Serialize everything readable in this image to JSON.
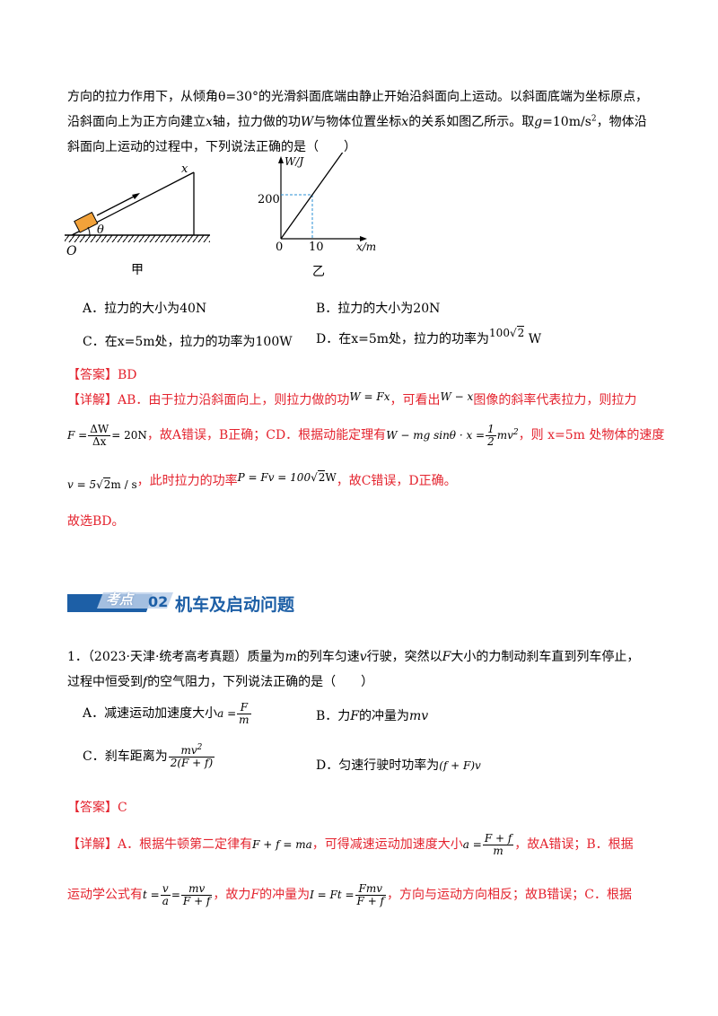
{
  "q_intro": {
    "line1": "方向的拉力作用下，从倾角θ=30°的光滑斜面底端由静止开始沿斜面向上运动。以斜面底端为坐标原点，",
    "line2a": "沿斜面向上为正方向建立",
    "line2b": "x",
    "line2c": "轴，拉力做的功",
    "line2d": "W",
    "line2e": "与物体位置坐标",
    "line2f": "x",
    "line2g": "的关系如图乙所示。取",
    "line2h": "g",
    "line2i": "=10m/s",
    "line2j": "2",
    "line2k": "，物体沿",
    "line3": "斜面向上运动的过程中，下列说法正确的是（　　）"
  },
  "figures": {
    "fig1": {
      "caption": "甲",
      "label_x": "x",
      "label_theta": "θ",
      "label_O": "O"
    },
    "fig2": {
      "caption": "乙",
      "y_axis_label": "W/J",
      "x_axis_label": "x/m",
      "origin_label": "0",
      "y_tick": "200",
      "x_tick": "10"
    }
  },
  "chart_data": {
    "type": "line",
    "x": [
      0,
      10
    ],
    "y": [
      0,
      200
    ],
    "xlabel": "x/m",
    "ylabel": "W/J"
  },
  "q1_choices": {
    "A": "A．拉力的大小为40N",
    "B": "B．拉力的大小为20N",
    "C": "C．在x=5m处，拉力的功率为100W",
    "D_pre": "D．在x=5m处，拉力的功率为",
    "D_val": "100",
    "D_rad": "2",
    "D_unit": " W"
  },
  "q1_answer": {
    "label": "【答案】BD"
  },
  "q1_detail": {
    "l1a": "【详解】AB．由于拉力沿斜面向上，则拉力做的功",
    "l1b": "W = Fx",
    "l1c": "，可看出",
    "l1d": "W − x",
    "l1e": "图像的斜率代表拉力，则拉力",
    "l2_F": "F =",
    "l2_num": "ΔW",
    "l2_den": "Δx",
    "l2_eq": "= 20N",
    "l2b": "，故A错误，B正确；CD．根据动能定理有",
    "l2c": "W − mg sinθ · x =",
    "l2_hn": "1",
    "l2_hd": "2",
    "l2_mv": "mv",
    "l2_sq": "2",
    "l2d": "，则 x=5m 处物体的速度",
    "l3a": "v = 5",
    "l3_rad": "2",
    "l3b": "m / s",
    "l3c": "，此时拉力的功率",
    "l3d": "P = Fv = 100",
    "l3_rad2": "2",
    "l3e": "W",
    "l3f": "，故C错误，D正确。",
    "l4": "故选BD。"
  },
  "section": {
    "tag": "考点",
    "number": "02",
    "title": "机车及启动问题"
  },
  "q2": {
    "l1a": "1．（2023·天津·统考高考真题）质量为",
    "l1b": "m",
    "l1c": "的列车匀速",
    "l1d": "v",
    "l1e": "行驶，突然以",
    "l1f": "F",
    "l1g": "大小的力制动刹车直到列车停止，",
    "l2a": "过程中恒受到",
    "l2b": "f",
    "l2c": "的空气阻力，下列说法正确的是（　　）",
    "A_pre": "A．减速运动加速度大小",
    "A_a": "a =",
    "A_num": "F",
    "A_den": "m",
    "B": "B．力",
    "B_F": "F",
    "B_mid": "的冲量为",
    "B_mv": "mv",
    "C_pre": "C．刹车距离为",
    "C_num": "mv",
    "C_sq": "2",
    "C_den": "2(F + f)",
    "D_pre": "D．匀速行驶时功率为",
    "D_expr": "(f + F)v"
  },
  "q2_answer": {
    "label": "【答案】C"
  },
  "q2_detail": {
    "l1a": "【详解】A．根据牛顿第二定律有",
    "l1b": "F + f = ma",
    "l1c": "，可得减速运动加速度大小",
    "l1d": "a =",
    "l1_num": "F + f",
    "l1_den": "m",
    "l1e": "，故A错误；B．根据",
    "l2a": "运动学公式有",
    "l2b": "t =",
    "l2_n1": "v",
    "l2_d1": "a",
    "l2_eq": "=",
    "l2_n2": "mv",
    "l2_d2": "F + f",
    "l2c": "，故力",
    "l2d": "F",
    "l2e": "的冲量为",
    "l2f": "I = Ft =",
    "l2_n3": "Fmv",
    "l2_d3": "F + f",
    "l2g": "，方向与运动方向相反；故B错误；C．根据"
  }
}
